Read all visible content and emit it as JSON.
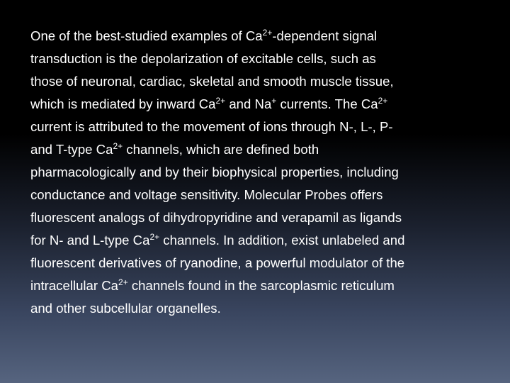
{
  "body": {
    "lines": [
      [
        {
          "text": "One of the best-studied examples of Ca"
        },
        {
          "sup": "2+"
        },
        {
          "text": "-dependent signal"
        }
      ],
      [
        {
          "text": "transduction is the depolarization of excitable cells, such as"
        }
      ],
      [
        {
          "text": "those of neuronal, cardiac, skeletal and smooth muscle tissue,"
        }
      ],
      [
        {
          "text": "which is mediated by inward Ca"
        },
        {
          "sup": "2+"
        },
        {
          "text": " and Na"
        },
        {
          "sup": "+"
        },
        {
          "text": " currents. The Ca"
        },
        {
          "sup": "2+"
        }
      ],
      [
        {
          "text": "current is attributed to the movement of ions through N-, L-, P-"
        }
      ],
      [
        {
          "text": "and T-type Ca"
        },
        {
          "sup": "2+"
        },
        {
          "text": " channels, which are defined both"
        }
      ],
      [
        {
          "text": "pharmacologically and by their biophysical properties, including"
        }
      ],
      [
        {
          "text": "conductance and voltage sensitivity. Molecular Probes offers"
        }
      ],
      [
        {
          "text": "fluorescent analogs of dihydropyridine and verapamil as ligands"
        }
      ],
      [
        {
          "text": "for N- and L-type Ca"
        },
        {
          "sup": "2+"
        },
        {
          "text": " channels. In addition, exist unlabeled and"
        }
      ],
      [
        {
          "text": "fluorescent derivatives of ryanodine, a powerful modulator of the"
        }
      ],
      [
        {
          "text": "intracellular Ca"
        },
        {
          "sup": "2+"
        },
        {
          "text": " channels found in the sarcoplasmic reticulum"
        }
      ],
      [
        {
          "text": "and other subcellular organelles."
        }
      ]
    ]
  }
}
